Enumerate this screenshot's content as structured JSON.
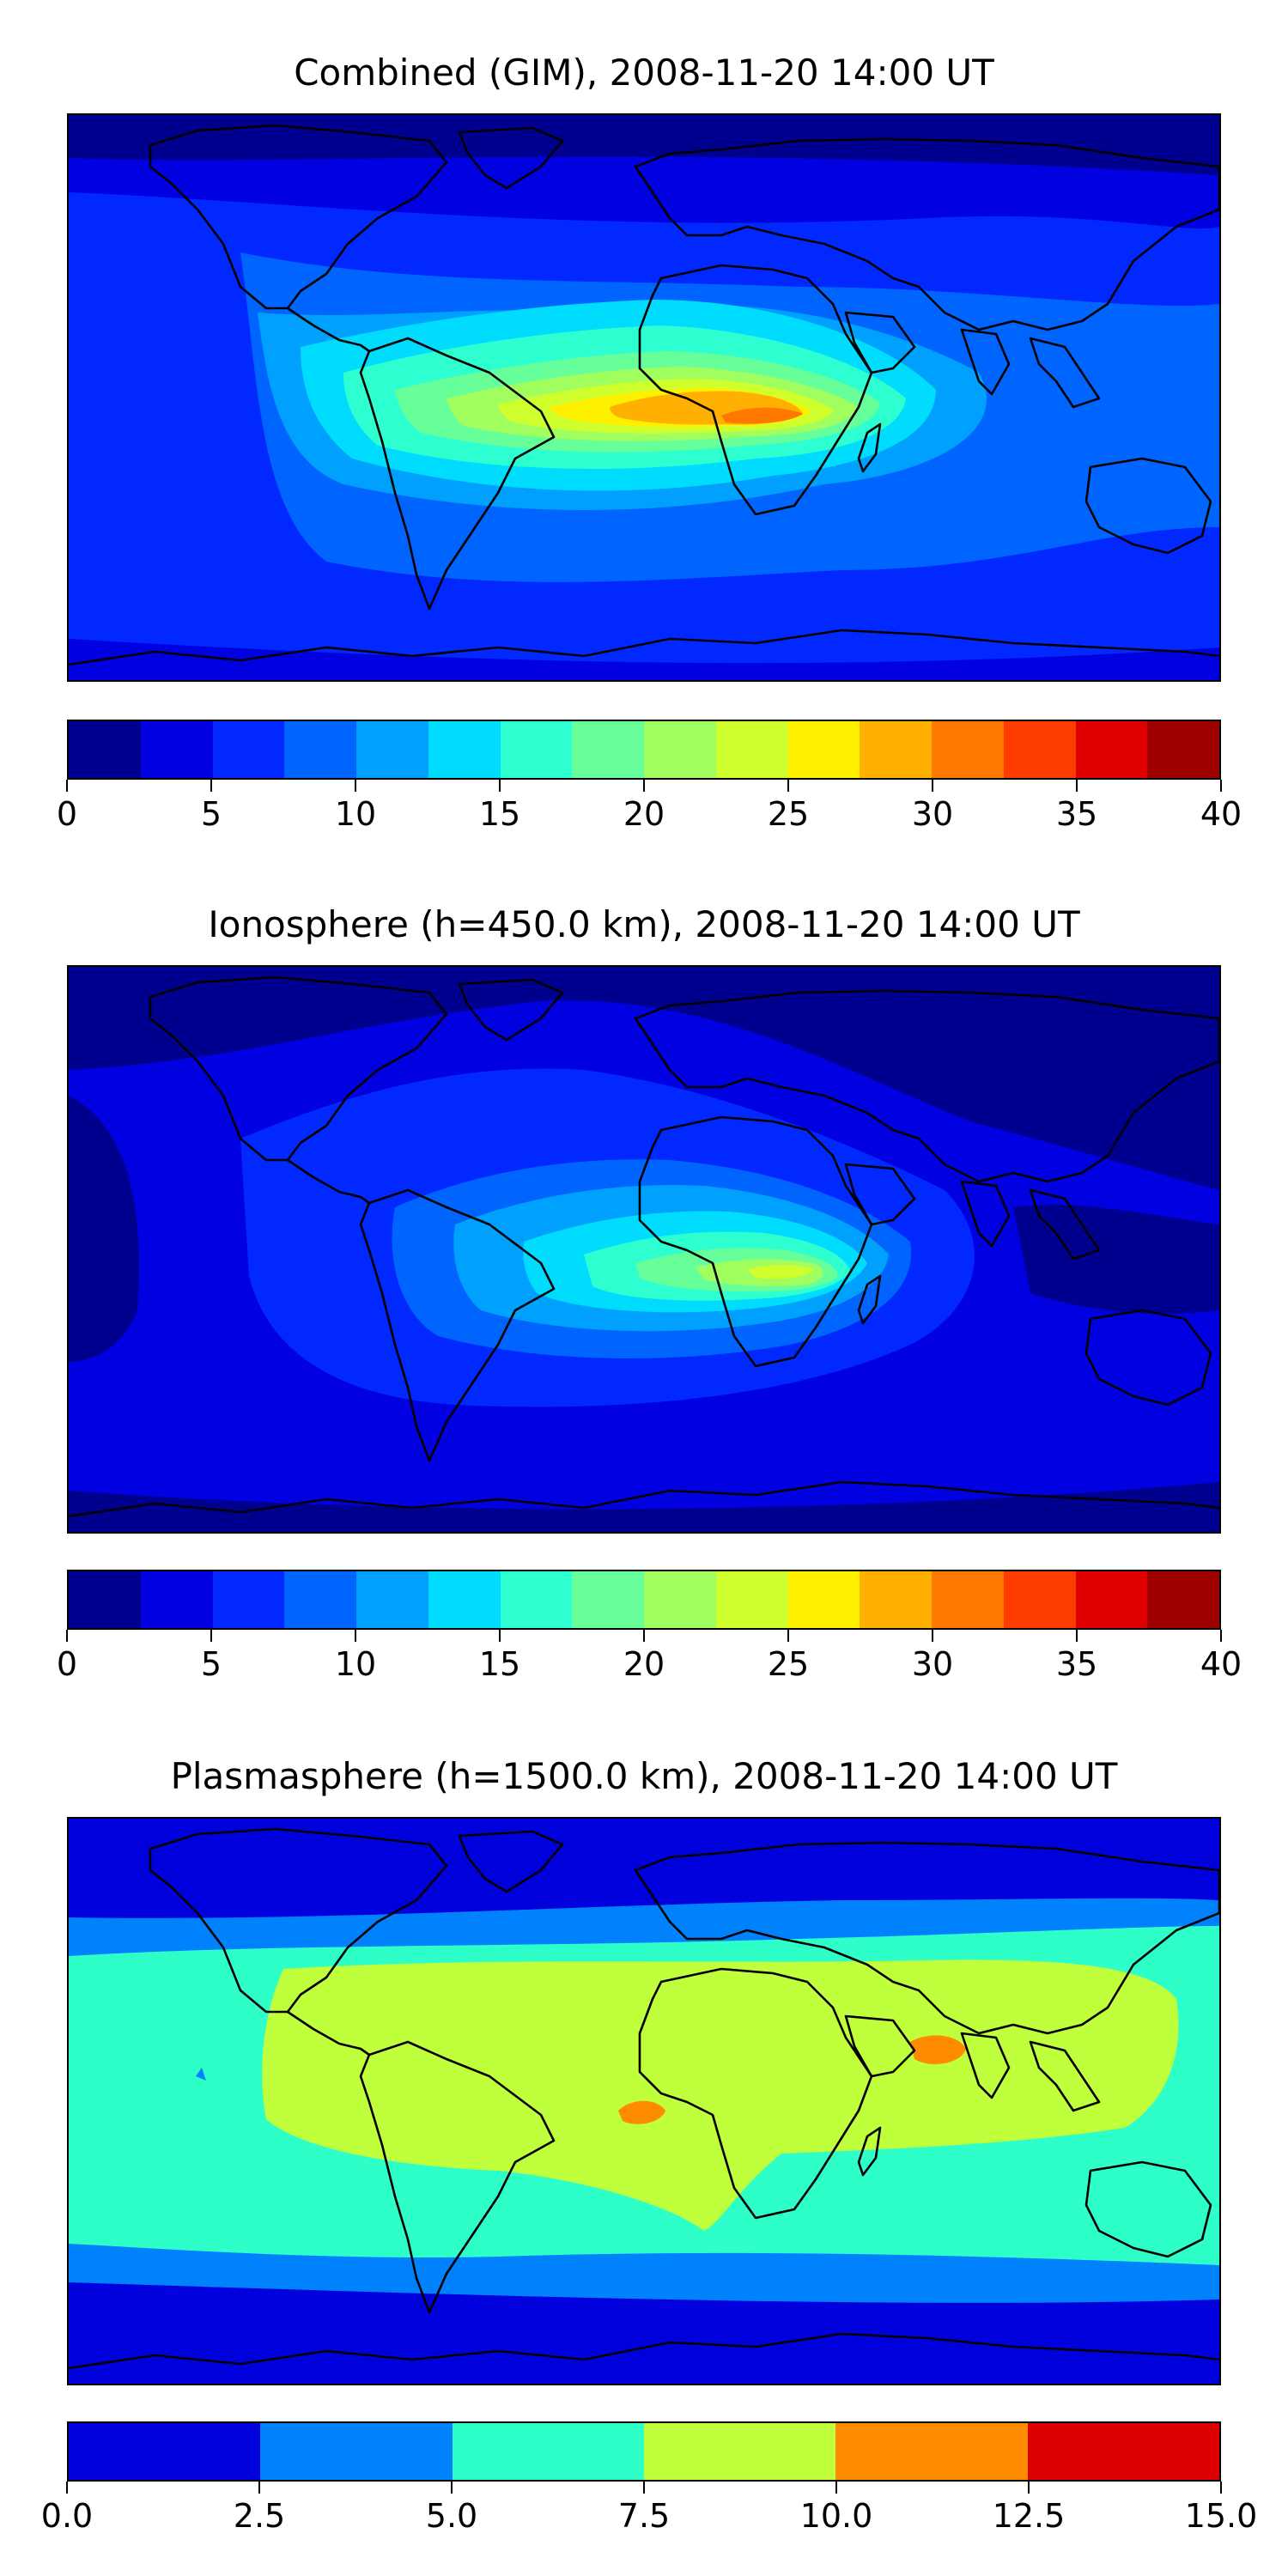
{
  "chart_data": [
    {
      "type": "heatmap",
      "map_type": "filled-contour world map",
      "title": "Combined (GIM), 2008-11-20 14:00 UT",
      "colorbar": {
        "range": [
          0,
          40
        ],
        "levels": [
          0,
          2.5,
          5,
          7.5,
          10,
          12.5,
          15,
          17.5,
          20,
          22.5,
          25,
          27.5,
          30,
          32.5,
          35,
          37.5,
          40
        ],
        "tick_values": [
          0,
          5,
          10,
          15,
          20,
          25,
          30,
          35,
          40
        ],
        "tick_labels": [
          "0",
          "5",
          "10",
          "15",
          "20",
          "25",
          "30",
          "35",
          "40"
        ],
        "colors": [
          "#00008f",
          "#0000e0",
          "#0028ff",
          "#0064ff",
          "#00a0ff",
          "#00dcfe",
          "#2effd0",
          "#66ff99",
          "#a0ff5e",
          "#d0ff2e",
          "#fff000",
          "#ffb000",
          "#ff7800",
          "#ff3c00",
          "#e00000",
          "#9e0000"
        ]
      },
      "peak_region": "Southern Africa",
      "peak_range": [
        30,
        32.5
      ]
    },
    {
      "type": "heatmap",
      "map_type": "filled-contour world map",
      "title": "Ionosphere  (h=450.0 km), 2008-11-20 14:00 UT",
      "colorbar": {
        "range": [
          0,
          40
        ],
        "levels": [
          0,
          2.5,
          5,
          7.5,
          10,
          12.5,
          15,
          17.5,
          20,
          22.5,
          25,
          27.5,
          30,
          32.5,
          35,
          37.5,
          40
        ],
        "tick_values": [
          0,
          5,
          10,
          15,
          20,
          25,
          30,
          35,
          40
        ],
        "tick_labels": [
          "0",
          "5",
          "10",
          "15",
          "20",
          "25",
          "30",
          "35",
          "40"
        ],
        "colors": [
          "#00008f",
          "#0000e0",
          "#0028ff",
          "#0064ff",
          "#00a0ff",
          "#00dcfe",
          "#2effd0",
          "#66ff99",
          "#a0ff5e",
          "#d0ff2e",
          "#fff000",
          "#ffb000",
          "#ff7800",
          "#ff3c00",
          "#e00000",
          "#9e0000"
        ]
      },
      "peak_region": "Southern Africa",
      "peak_range": [
        22.5,
        25
      ]
    },
    {
      "type": "heatmap",
      "map_type": "filled-contour world map",
      "title": "Plasmasphere (h=1500.0 km), 2008-11-20 14:00 UT",
      "colorbar": {
        "range": [
          0,
          15
        ],
        "levels": [
          0,
          2.5,
          5,
          7.5,
          10,
          12.5,
          15
        ],
        "tick_values": [
          0,
          2.5,
          5,
          7.5,
          10,
          12.5,
          15
        ],
        "tick_labels": [
          "0.0",
          "2.5",
          "5.0",
          "7.5",
          "10.0",
          "12.5",
          "15.0"
        ],
        "colors": [
          "#0000dd",
          "#0082ff",
          "#2effc8",
          "#c0ff3c",
          "#ff8c00",
          "#dd0000"
        ]
      },
      "peak_region": "South Asia / Central Africa",
      "peak_range": [
        10,
        12.5
      ]
    }
  ]
}
